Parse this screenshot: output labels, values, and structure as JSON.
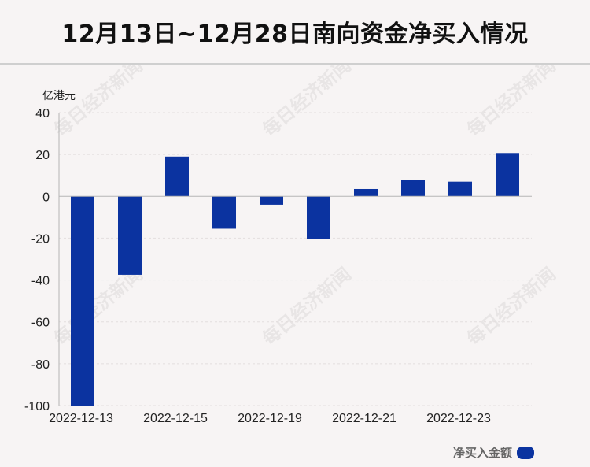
{
  "title": "12月13日~12月28日南向资金净买入情况",
  "watermark": "每日经济新闻",
  "colors": {
    "bar": "#0b33a0",
    "grid": "#e3dede",
    "axis": "#b5b5b5"
  },
  "chart_data": {
    "type": "bar",
    "unit_label": "亿港元",
    "ylim": [
      -100,
      40
    ],
    "yticks": [
      40,
      20,
      0,
      -20,
      -40,
      -60,
      -80,
      -100
    ],
    "x_tick_labels": [
      "2022-12-13",
      "2022-12-15",
      "2022-12-19",
      "2022-12-21",
      "2022-12-23"
    ],
    "values": [
      -100,
      -37.5,
      19,
      -15.5,
      -4,
      -20.5,
      3.5,
      7.8,
      7,
      20.7
    ],
    "legend": "净买入金额",
    "grid": true,
    "legend_position": "bottom-right"
  }
}
